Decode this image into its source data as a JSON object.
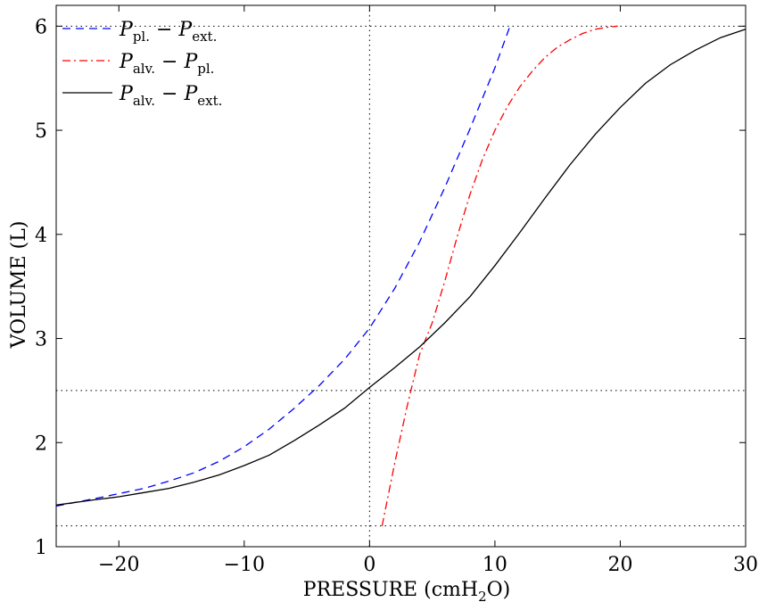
{
  "chart_data": {
    "type": "line",
    "xlabel": "PRESSURE (cmH2O)",
    "xlabel_parts": {
      "pre": "PRESSURE (cmH",
      "sub": "2",
      "post": "O)"
    },
    "ylabel": "VOLUME (L)",
    "xlim": [
      -25,
      30
    ],
    "ylim": [
      1,
      6.2
    ],
    "xticks": [
      -20,
      -10,
      0,
      10,
      20,
      30
    ],
    "yticks": [
      1,
      2,
      3,
      4,
      5,
      6
    ],
    "xtick_labels": [
      "−20",
      "−10",
      "0",
      "10",
      "20",
      "30"
    ],
    "ytick_labels": [
      "1",
      "2",
      "3",
      "4",
      "5",
      "6"
    ],
    "grid": false,
    "legend_position": "top-left",
    "reference_lines": {
      "horizontal": [
        6,
        2.5,
        1.2
      ],
      "vertical": [
        0
      ]
    },
    "series": [
      {
        "name": "P_pl. − P_ext.",
        "legend": {
          "a": "P",
          "a_sub": "pl.",
          "op": " − ",
          "b": "P",
          "b_sub": "ext."
        },
        "color": "#0000ff",
        "dash": "dashed",
        "x": [
          -25,
          -22,
          -20,
          -18,
          -16,
          -14,
          -12,
          -10,
          -8,
          -6,
          -4,
          -2,
          0,
          2,
          4,
          6,
          8,
          10,
          11.2
        ],
        "y": [
          1.39,
          1.46,
          1.51,
          1.56,
          1.63,
          1.71,
          1.82,
          1.96,
          2.13,
          2.33,
          2.55,
          2.8,
          3.1,
          3.48,
          3.93,
          4.45,
          5.01,
          5.6,
          6.0
        ]
      },
      {
        "name": "P_alv. − P_pl.",
        "legend": {
          "a": "P",
          "a_sub": "alv.",
          "op": " − ",
          "b": "P",
          "b_sub": "pl."
        },
        "color": "#ff0000",
        "dash": "dashdot",
        "x": [
          1.0,
          2.0,
          3.0,
          4.0,
          5.0,
          6.0,
          7.0,
          8.0,
          9.0,
          10.0,
          11.0,
          12.0,
          13.0,
          14.0,
          15.0,
          16.0,
          17.0,
          18.0,
          19.0,
          19.8
        ],
        "y": [
          1.2,
          1.8,
          2.35,
          2.85,
          3.15,
          3.55,
          3.98,
          4.38,
          4.72,
          5.0,
          5.23,
          5.42,
          5.57,
          5.7,
          5.8,
          5.87,
          5.93,
          5.97,
          5.99,
          6.0
        ]
      },
      {
        "name": "P_alv. − P_ext.",
        "legend": {
          "a": "P",
          "a_sub": "alv.",
          "op": " − ",
          "b": "P",
          "b_sub": "ext."
        },
        "color": "#000000",
        "dash": "solid",
        "x": [
          -25,
          -22,
          -20,
          -18,
          -16,
          -14,
          -12,
          -10,
          -8,
          -6,
          -4,
          -2,
          0,
          2,
          4,
          6,
          8,
          10,
          12,
          14,
          16,
          18,
          20,
          22,
          24,
          26,
          28,
          30
        ],
        "y": [
          1.4,
          1.45,
          1.48,
          1.52,
          1.56,
          1.62,
          1.69,
          1.78,
          1.88,
          2.02,
          2.17,
          2.33,
          2.53,
          2.72,
          2.92,
          3.15,
          3.4,
          3.7,
          4.02,
          4.35,
          4.67,
          4.96,
          5.22,
          5.45,
          5.63,
          5.77,
          5.89,
          5.97
        ]
      }
    ]
  }
}
